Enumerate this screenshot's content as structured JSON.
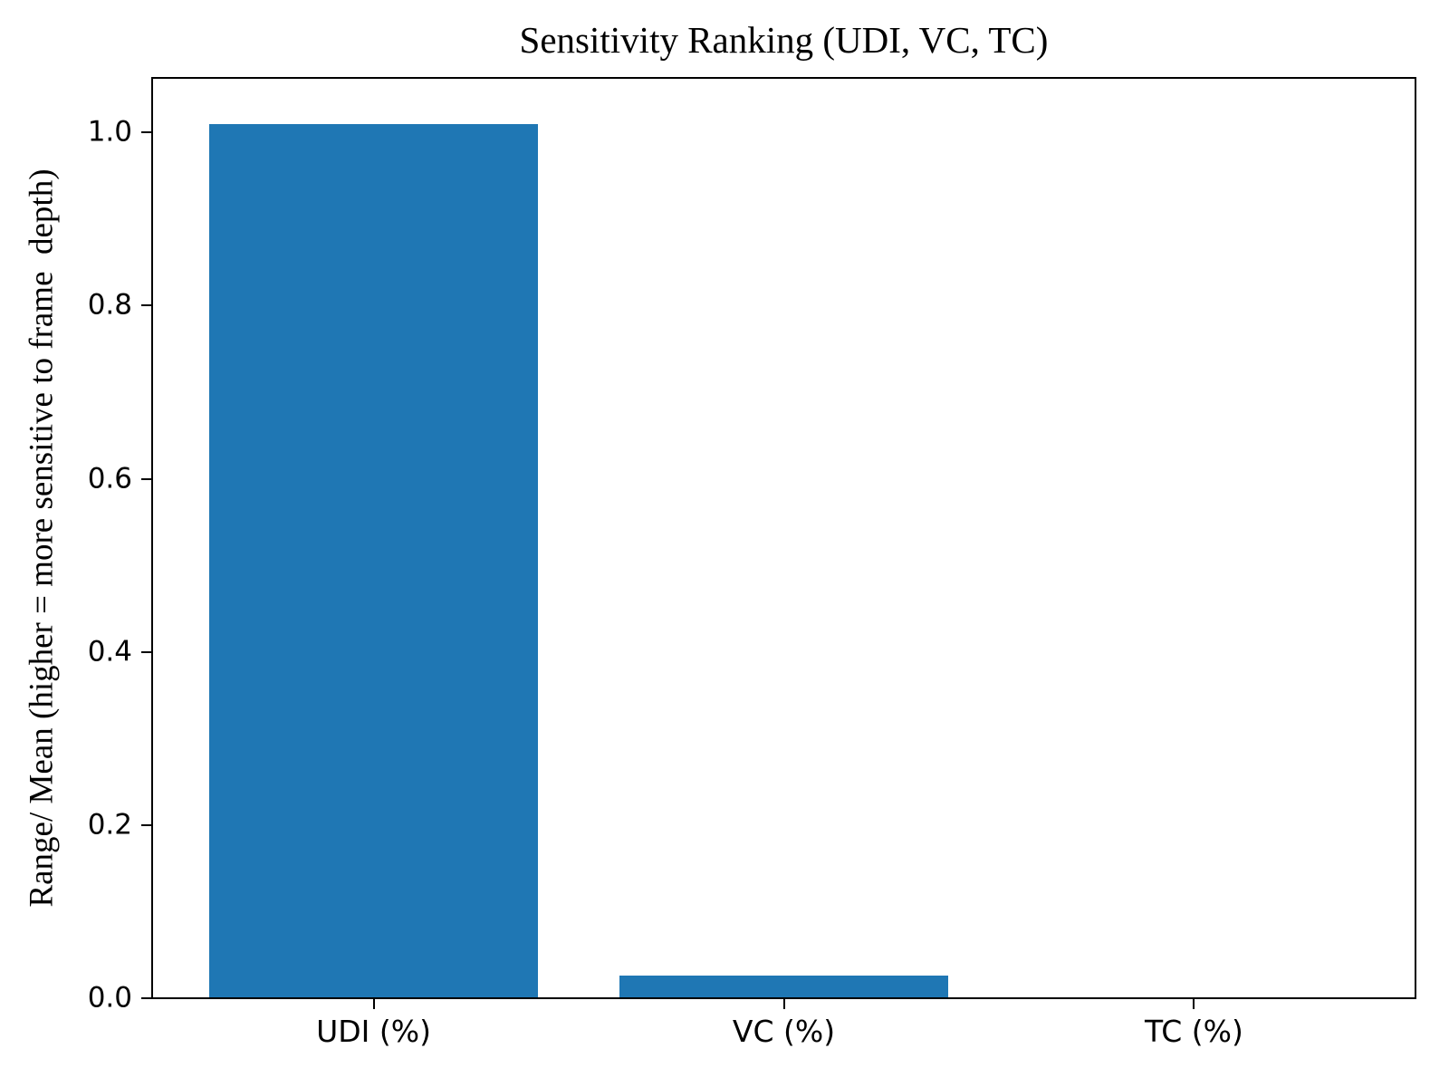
{
  "figure": {
    "background": "#ffffff",
    "text_color": "#000000",
    "spine_color": "#000000"
  },
  "chart_data": {
    "type": "bar",
    "title": "Sensitivity Ranking (UDI, VC, TC)",
    "ylabel": "Range/ Mean (higher = more sensitive to frame  depth)",
    "xlabel": "",
    "categories": [
      "UDI (%)",
      "VC (%)",
      "TC (%)"
    ],
    "values": [
      1.01,
      0.026,
      0.0
    ],
    "yticks": [
      0.0,
      0.2,
      0.4,
      0.6,
      0.8,
      1.0
    ],
    "ytick_labels": [
      "0.0",
      "0.2",
      "0.4",
      "0.6",
      "0.8",
      "1.0"
    ],
    "ylim": [
      0,
      1.063
    ],
    "bar_color": "#1f77b4",
    "bar_width_fraction": 0.8,
    "grid": false,
    "legend_position": null
  }
}
